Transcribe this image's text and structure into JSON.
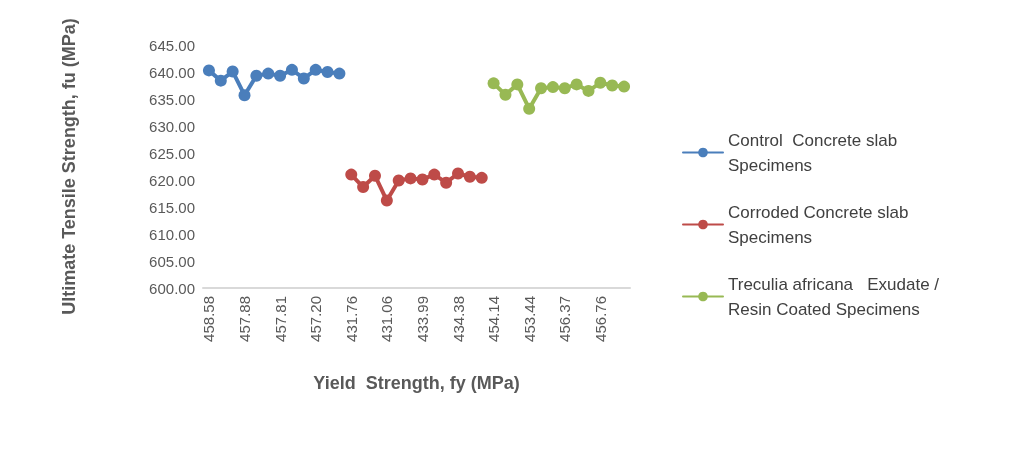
{
  "chart_data": {
    "type": "line",
    "xlabel": "Yield  Strength, fy (MPa)",
    "ylabel": "Ultimate Tensile Strength, fu (MPa)",
    "categories": [
      "458.58",
      null,
      null,
      "457.88",
      null,
      null,
      "457.81",
      null,
      null,
      "457.20",
      null,
      null,
      "431.76",
      null,
      null,
      "431.06",
      null,
      null,
      "433.99",
      null,
      null,
      "434.38",
      null,
      null,
      "454.14",
      null,
      null,
      "453.44",
      null,
      null,
      "456.37",
      null,
      null,
      "456.76",
      null,
      null
    ],
    "series": [
      {
        "name": "Control  Concrete slab Specimens",
        "color": "#4a7ebb",
        "values": [
          640.3,
          638.4,
          640.1,
          635.7,
          639.3,
          639.7,
          639.3,
          640.4,
          638.8,
          640.4,
          640.0,
          639.7,
          null,
          null,
          null,
          null,
          null,
          null,
          null,
          null,
          null,
          null,
          null,
          null,
          null,
          null,
          null,
          null,
          null,
          null,
          null,
          null,
          null,
          null,
          null,
          null
        ]
      },
      {
        "name": "Corroded Concrete slab Specimens",
        "color": "#be4b48",
        "values": [
          null,
          null,
          null,
          null,
          null,
          null,
          null,
          null,
          null,
          null,
          null,
          null,
          621.0,
          618.7,
          620.8,
          616.2,
          619.9,
          620.3,
          620.1,
          621.0,
          619.5,
          621.2,
          620.6,
          620.4,
          null,
          null,
          null,
          null,
          null,
          null,
          null,
          null,
          null,
          null,
          null,
          null
        ]
      },
      {
        "name": "Treculia africana   Exudate / Resin Coated Specimens",
        "color": "#98b954",
        "values": [
          null,
          null,
          null,
          null,
          null,
          null,
          null,
          null,
          null,
          null,
          null,
          null,
          null,
          null,
          null,
          null,
          null,
          null,
          null,
          null,
          null,
          null,
          null,
          null,
          637.9,
          635.8,
          637.7,
          633.2,
          637.0,
          637.2,
          637.0,
          637.7,
          636.5,
          638.0,
          637.5,
          637.3
        ]
      }
    ],
    "ylim": [
      600,
      645
    ],
    "yticks": [
      {
        "value": 600,
        "label": "600.00"
      },
      {
        "value": 605,
        "label": "605.00"
      },
      {
        "value": 610,
        "label": "610.00"
      },
      {
        "value": 615,
        "label": "615.00"
      },
      {
        "value": 620,
        "label": "620.00"
      },
      {
        "value": 625,
        "label": "625.00"
      },
      {
        "value": 630,
        "label": "630.00"
      },
      {
        "value": 635,
        "label": "635.00"
      },
      {
        "value": 640,
        "label": "640.00"
      },
      {
        "value": 645,
        "label": "645.00"
      }
    ],
    "grid": false,
    "legend": "right",
    "marker": "circle",
    "line_style": "solid"
  }
}
